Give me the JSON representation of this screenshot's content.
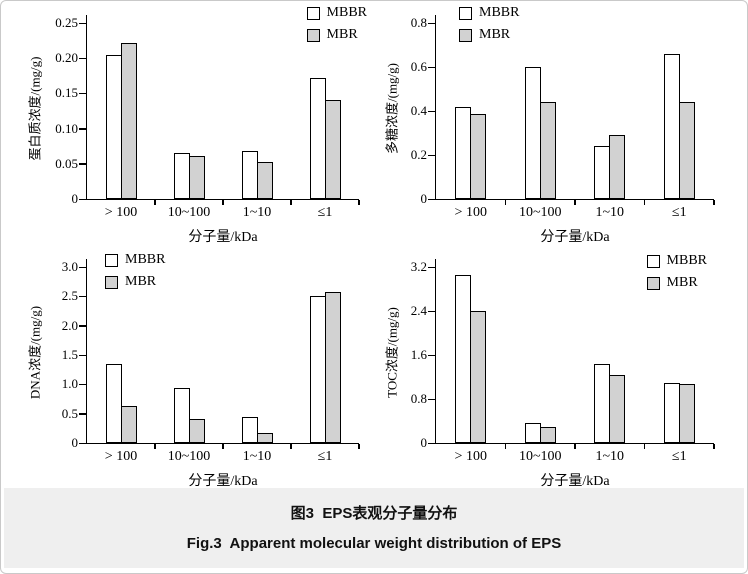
{
  "page": {
    "background": "#ffffff",
    "border_color": "#c9c9c9",
    "caption_background": "#efefef",
    "axis_color": "#000000"
  },
  "caption": {
    "zh": "图3  EPS表观分子量分布",
    "en": "Fig.3  Apparent molecular weight distribution of EPS"
  },
  "series_styles": {
    "MBBR": "#ffffff",
    "MBR": "#d2d2d2"
  },
  "chart_data": [
    {
      "type": "bar",
      "title": "",
      "ylabel": "蛋白质浓度/(mg/g)",
      "xlabel": "分子量/kDa",
      "categories": [
        "> 100",
        "10~100",
        "1~10",
        "≤1"
      ],
      "series": [
        {
          "name": "MBBR",
          "fill": "#ffffff",
          "values": [
            0.205,
            0.065,
            0.068,
            0.172
          ]
        },
        {
          "name": "MBR",
          "fill": "#d2d2d2",
          "values": [
            0.222,
            0.061,
            0.053,
            0.141
          ]
        }
      ],
      "ylim": [
        0,
        0.25
      ],
      "yticks": [
        "0",
        "0.05",
        "0.10",
        "0.15",
        "0.20",
        "0.25"
      ],
      "grid": false,
      "legend_position": "top-right"
    },
    {
      "type": "bar",
      "title": "",
      "ylabel": "多糖浓度/(mg/g)",
      "xlabel": "分子量/kDa",
      "categories": [
        "> 100",
        "10~100",
        "1~10",
        "≤1"
      ],
      "series": [
        {
          "name": "MBBR",
          "fill": "#ffffff",
          "values": [
            0.42,
            0.6,
            0.24,
            0.66
          ]
        },
        {
          "name": "MBR",
          "fill": "#d2d2d2",
          "values": [
            0.385,
            0.44,
            0.29,
            0.44
          ]
        }
      ],
      "ylim": [
        0,
        0.8
      ],
      "yticks": [
        "0",
        "0.2",
        "0.4",
        "0.6",
        "0.8"
      ],
      "grid": false,
      "legend_position": "top-left"
    },
    {
      "type": "bar",
      "title": "",
      "ylabel": "DNA浓度/(mg/g)",
      "xlabel": "分子量/kDa",
      "categories": [
        "> 100",
        "10~100",
        "1~10",
        "≤1"
      ],
      "series": [
        {
          "name": "MBBR",
          "fill": "#ffffff",
          "values": [
            1.35,
            0.93,
            0.45,
            2.5
          ]
        },
        {
          "name": "MBR",
          "fill": "#d2d2d2",
          "values": [
            0.63,
            0.41,
            0.17,
            2.58
          ]
        }
      ],
      "ylim": [
        0,
        3.0
      ],
      "yticks": [
        "0",
        "0.5",
        "1.0",
        "1.5",
        "2.0",
        "2.5",
        "3.0"
      ],
      "grid": false,
      "legend_position": "top-left"
    },
    {
      "type": "bar",
      "title": "",
      "ylabel": "TOC浓度/(mg/g)",
      "xlabel": "分子量/kDa",
      "categories": [
        "> 100",
        "10~100",
        "1~10",
        "≤1"
      ],
      "series": [
        {
          "name": "MBBR",
          "fill": "#ffffff",
          "values": [
            3.05,
            0.37,
            1.44,
            1.09
          ]
        },
        {
          "name": "MBR",
          "fill": "#d2d2d2",
          "values": [
            2.4,
            0.3,
            1.23,
            1.08
          ]
        }
      ],
      "ylim": [
        0,
        3.2
      ],
      "yticks": [
        "0",
        "0.8",
        "1.6",
        "2.4",
        "3.2"
      ],
      "grid": false,
      "legend_position": "top-right"
    }
  ]
}
